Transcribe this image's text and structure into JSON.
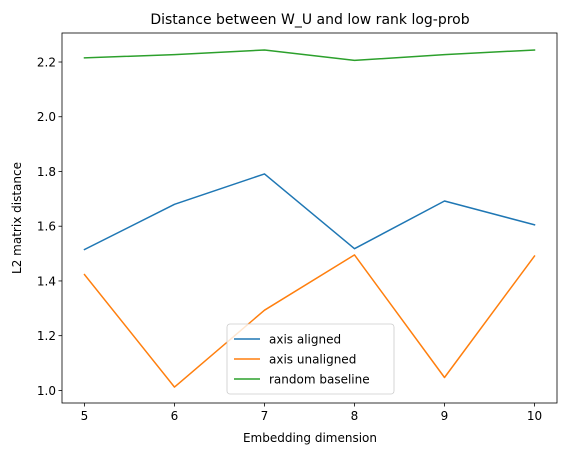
{
  "chart_data": {
    "type": "line",
    "title": "Distance between W_U and low rank log-prob",
    "xlabel": "Embedding dimension",
    "ylabel": "L2 matrix distance",
    "x": [
      5,
      6,
      7,
      8,
      9,
      10
    ],
    "xticks": [
      "5",
      "6",
      "7",
      "8",
      "9",
      "10"
    ],
    "yticks": [
      "1.0",
      "1.2",
      "1.4",
      "1.6",
      "1.8",
      "2.0",
      "2.2"
    ],
    "xlim": [
      4.75,
      10.25
    ],
    "ylim": [
      0.954,
      2.306
    ],
    "grid": false,
    "legend_position": "lower center",
    "series": [
      {
        "name": "axis aligned",
        "color": "#1f77b4",
        "values": [
          1.515,
          1.68,
          1.791,
          1.518,
          1.692,
          1.605
        ]
      },
      {
        "name": "axis unaligned",
        "color": "#ff7f0e",
        "values": [
          1.423,
          1.012,
          1.293,
          1.495,
          1.047,
          1.491
        ]
      },
      {
        "name": "random baseline",
        "color": "#2ca02c",
        "values": [
          2.215,
          2.227,
          2.244,
          2.206,
          2.227,
          2.244
        ]
      }
    ]
  }
}
